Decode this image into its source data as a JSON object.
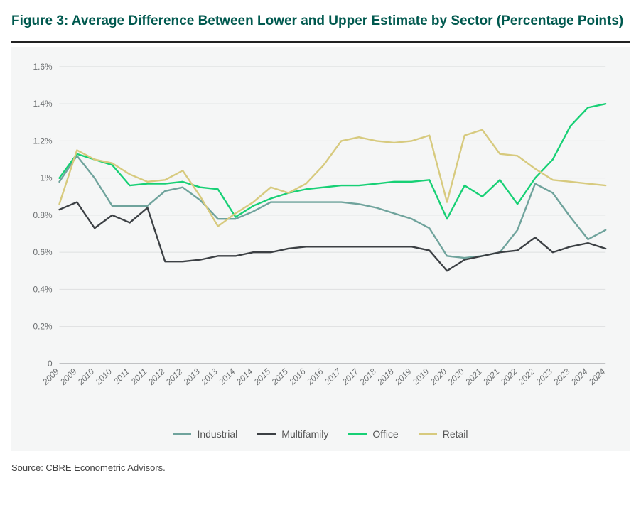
{
  "title": "Figure 3: Average Difference Between Lower and Upper Estimate by Sector (Percentage Points)",
  "source": "Source: CBRE Econometric Advisors.",
  "chart": {
    "type": "line",
    "background_color": "#f5f6f6",
    "grid_color": "#dedfe0",
    "axis_label_color": "#6b6e70",
    "tick_fontsize": 12,
    "ylim": [
      0,
      1.6
    ],
    "ytick_step": 0.2,
    "ytick_labels": [
      "0",
      "0.2%",
      "0.4%",
      "0.6%",
      "0.8%",
      "1%",
      "1.2%",
      "1.4%",
      "1.6%"
    ],
    "categories": [
      "2009",
      "2009",
      "2010",
      "2010",
      "2011",
      "2011",
      "2012",
      "2012",
      "2013",
      "2013",
      "2014",
      "2014",
      "2015",
      "2015",
      "2016",
      "2016",
      "2017",
      "2017",
      "2018",
      "2018",
      "2019",
      "2019",
      "2020",
      "2020",
      "2021",
      "2021",
      "2022",
      "2022",
      "2023",
      "2023",
      "2024",
      "2024"
    ],
    "line_width": 2.4,
    "series": [
      {
        "name": "Industrial",
        "color": "#6fa39c",
        "data": [
          0.98,
          1.12,
          1.0,
          0.85,
          0.85,
          0.85,
          0.93,
          0.95,
          0.88,
          0.78,
          0.78,
          0.82,
          0.87,
          0.87,
          0.87,
          0.87,
          0.87,
          0.86,
          0.84,
          0.81,
          0.78,
          0.73,
          0.58,
          0.57,
          0.58,
          0.6,
          0.72,
          0.97,
          0.92,
          0.79,
          0.67,
          0.72
        ]
      },
      {
        "name": "Multifamily",
        "color": "#3c4044",
        "data": [
          0.83,
          0.87,
          0.73,
          0.8,
          0.76,
          0.84,
          0.55,
          0.55,
          0.56,
          0.58,
          0.58,
          0.6,
          0.6,
          0.62,
          0.63,
          0.63,
          0.63,
          0.63,
          0.63,
          0.63,
          0.63,
          0.61,
          0.5,
          0.56,
          0.58,
          0.6,
          0.61,
          0.68,
          0.6,
          0.63,
          0.65,
          0.62
        ]
      },
      {
        "name": "Office",
        "color": "#17d075",
        "data": [
          1.0,
          1.13,
          1.1,
          1.07,
          0.96,
          0.97,
          0.97,
          0.98,
          0.95,
          0.94,
          0.79,
          0.85,
          0.89,
          0.92,
          0.94,
          0.95,
          0.96,
          0.96,
          0.97,
          0.98,
          0.98,
          0.99,
          0.78,
          0.96,
          0.9,
          0.99,
          0.86,
          1.0,
          1.1,
          1.28,
          1.38,
          1.4
        ]
      },
      {
        "name": "Retail",
        "color": "#d7ca7e",
        "data": [
          0.86,
          1.15,
          1.1,
          1.08,
          1.02,
          0.98,
          0.99,
          1.04,
          0.9,
          0.74,
          0.81,
          0.87,
          0.95,
          0.92,
          0.97,
          1.07,
          1.2,
          1.22,
          1.2,
          1.19,
          1.2,
          1.23,
          0.87,
          1.23,
          1.26,
          1.13,
          1.12,
          1.05,
          0.99,
          0.98,
          0.97,
          0.96
        ]
      }
    ],
    "legend": {
      "position": "bottom",
      "fontsize": 14,
      "items": [
        {
          "label": "Industrial",
          "color": "#6fa39c"
        },
        {
          "label": "Multifamily",
          "color": "#3c4044"
        },
        {
          "label": "Office",
          "color": "#17d075"
        },
        {
          "label": "Retail",
          "color": "#d7ca7e"
        }
      ]
    }
  }
}
